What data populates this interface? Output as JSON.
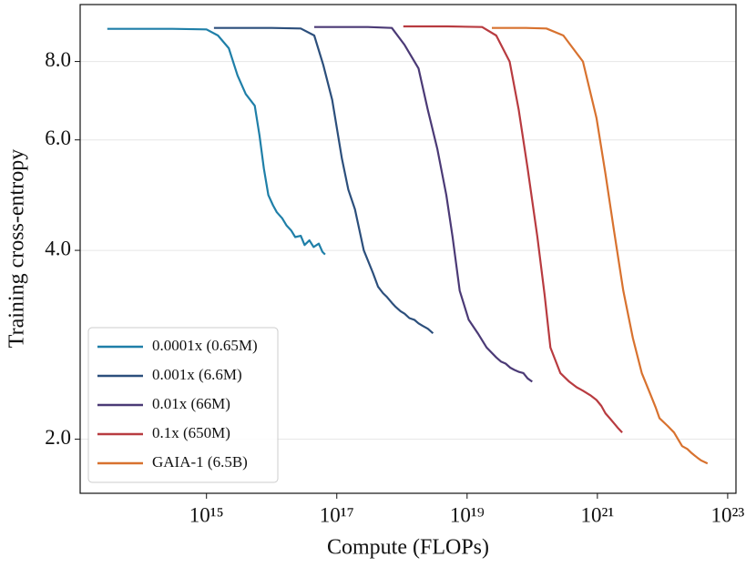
{
  "chart_data": {
    "type": "line",
    "xlabel": "Compute (FLOPs)",
    "ylabel": "Training cross-entropy",
    "xscale": "log",
    "yscale": "log",
    "xlim": [
      11500000000000.0,
      1.34e+23
    ],
    "ylim": [
      1.64,
      9.86
    ],
    "xticks": [
      {
        "value": 1000000000000000.0,
        "label": "10¹⁵"
      },
      {
        "value": 1e+17,
        "label": "10¹⁷"
      },
      {
        "value": 1e+19,
        "label": "10¹⁹"
      },
      {
        "value": 1e+21,
        "label": "10²¹"
      },
      {
        "value": 1e+23,
        "label": "10²³"
      }
    ],
    "yticks": [
      {
        "value": 2,
        "label": "2.0"
      },
      {
        "value": 4,
        "label": "4.0"
      },
      {
        "value": 6,
        "label": "6.0"
      },
      {
        "value": 8,
        "label": "8.0"
      }
    ],
    "grid": true,
    "legend": "lower left",
    "series": [
      {
        "name": "0.0001x (0.65M)",
        "color": "#1f7fa8",
        "x": [
          30000000000000.0,
          300000000000000.0,
          1000000000000000.0,
          1500000000000000.0,
          2200000000000000.0,
          3000000000000000.0,
          4000000000000000.0,
          5500000000000000.0,
          6500000000000000.0,
          7600000000000000.0,
          8900000000000000.0,
          1.05e+16,
          1.2e+16,
          1.45e+16,
          1.7e+16,
          2e+16,
          2.3e+16,
          2.8e+16,
          3.2e+16,
          3.8e+16,
          4.4e+16,
          5.3e+16,
          6e+16,
          6.6e+16
        ],
        "values": [
          9.02,
          9.02,
          9.0,
          8.8,
          8.4,
          7.6,
          7.1,
          6.8,
          6.1,
          5.4,
          4.9,
          4.72,
          4.6,
          4.5,
          4.38,
          4.3,
          4.2,
          4.22,
          4.08,
          4.15,
          4.05,
          4.1,
          3.98,
          3.94
        ]
      },
      {
        "name": "0.001x (6.6M)",
        "color": "#2c4f7c",
        "x": [
          1300000000000000.0,
          1e+16,
          2.8e+16,
          4.5e+16,
          6.2e+16,
          8.5e+16,
          1.2e+17,
          1.5e+17,
          1.9e+17,
          2.6e+17,
          3.6e+17,
          4.3e+17,
          5.1e+17,
          5.9e+17,
          7e+17,
          8e+17,
          9.5e+17,
          1.1e+18,
          1.3e+18,
          1.55e+18,
          1.8e+18,
          2.1e+18,
          2.5e+18,
          3e+18
        ],
        "values": [
          9.05,
          9.05,
          9.03,
          8.8,
          7.9,
          6.95,
          5.6,
          5.0,
          4.65,
          4.0,
          3.68,
          3.5,
          3.42,
          3.37,
          3.3,
          3.25,
          3.2,
          3.17,
          3.12,
          3.1,
          3.06,
          3.03,
          3.0,
          2.95
        ]
      },
      {
        "name": "0.01x (66M)",
        "color": "#4b3a76",
        "x": [
          4.5e+16,
          3e+17,
          7e+17,
          1.1e+18,
          1.8e+18,
          2.5e+18,
          3.5e+18,
          4.8e+18,
          6e+18,
          7.7e+18,
          1.06e+19,
          1.46e+19,
          2e+19,
          2.8e+19,
          3.3e+19,
          3.9e+19,
          4.6e+19,
          5.3e+19,
          6.3e+19,
          7.3e+19,
          8.5e+19,
          1e+20
        ],
        "values": [
          9.08,
          9.08,
          9.05,
          8.5,
          7.8,
          6.7,
          5.8,
          4.9,
          4.2,
          3.45,
          3.1,
          2.95,
          2.8,
          2.7,
          2.66,
          2.64,
          2.6,
          2.58,
          2.56,
          2.55,
          2.5,
          2.47
        ]
      },
      {
        "name": "0.1x (650M)",
        "color": "#b83b40",
        "x": [
          1.05e+18,
          5e+18,
          1.7e+19,
          2.8e+19,
          4.5e+19,
          6.2e+19,
          8.5e+19,
          1.2e+20,
          1.55e+20,
          1.9e+20,
          2.7e+20,
          3.7e+20,
          4.8e+20,
          6e+20,
          7.8e+20,
          9.7e+20,
          1.15e+21,
          1.33e+21,
          1.55e+21,
          1.8e+21,
          2.1e+21,
          2.4e+21
        ],
        "values": [
          9.1,
          9.1,
          9.08,
          8.8,
          8.0,
          6.7,
          5.4,
          4.2,
          3.4,
          2.8,
          2.55,
          2.47,
          2.42,
          2.39,
          2.35,
          2.31,
          2.26,
          2.2,
          2.16,
          2.12,
          2.08,
          2.05
        ]
      },
      {
        "name": "GAIA-1 (6.5B)",
        "color": "#d8722f",
        "x": [
          2.4e+19,
          8e+19,
          1.65e+20,
          3e+20,
          6e+20,
          9.7e+20,
          1.33e+21,
          1.8e+21,
          2.5e+21,
          3.5e+21,
          4.8e+21,
          6.6e+21,
          7.8e+21,
          9e+21,
          1.2e+22,
          1.5e+22,
          2e+22,
          2.4e+22,
          2.8e+22,
          3.4e+22,
          3.9e+22,
          4.9e+22
        ],
        "values": [
          9.05,
          9.05,
          9.03,
          8.8,
          8.0,
          6.5,
          5.3,
          4.3,
          3.45,
          2.9,
          2.55,
          2.35,
          2.25,
          2.16,
          2.1,
          2.05,
          1.95,
          1.93,
          1.9,
          1.87,
          1.85,
          1.83
        ]
      }
    ]
  }
}
